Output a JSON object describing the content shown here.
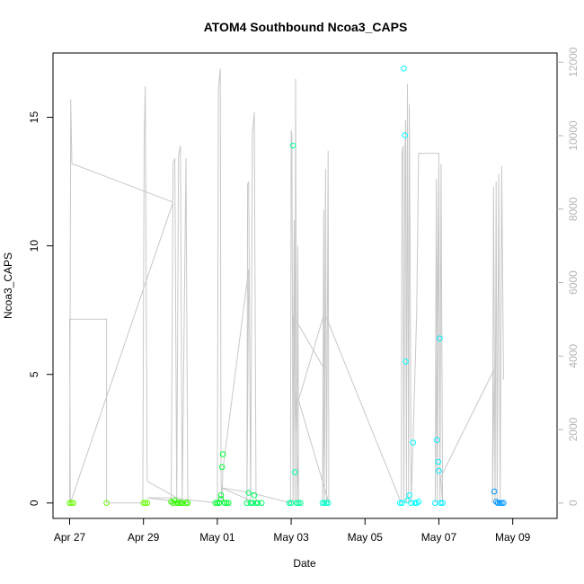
{
  "chart_data": {
    "type": "scatter",
    "title": "ATOM4 Southbound Ncoa3_CAPS",
    "xlabel": "Date",
    "ylabel": "Ncoa3_CAPS",
    "x_ticks": [
      "Apr 27",
      "Apr 29",
      "May 01",
      "May 03",
      "May 05",
      "May 07",
      "May 09"
    ],
    "x_tick_days": [
      0,
      2,
      4,
      6,
      8,
      10,
      12
    ],
    "xlim_days": [
      -0.45,
      13.2
    ],
    "y_ticks": [
      0,
      5,
      10,
      15
    ],
    "ylim": [
      -0.6,
      17.5
    ],
    "y2_ticks": [
      0,
      2000,
      4000,
      6000,
      8000,
      10000,
      12000
    ],
    "y2lim": [
      -420,
      12250
    ],
    "grid": false,
    "colors": {
      "line": "#c8c8c8",
      "axis": "#000000",
      "right_axis": "#b4b4b4"
    },
    "series": [
      {
        "color": "#66ff00",
        "points": [
          [
            0.0,
            0
          ],
          [
            0.05,
            0
          ],
          [
            0.1,
            0
          ],
          [
            1.0,
            0
          ],
          [
            2.0,
            0
          ],
          [
            2.05,
            0
          ],
          [
            2.1,
            0
          ]
        ]
      },
      {
        "color": "#33ff00",
        "points": [
          [
            2.75,
            0.05
          ],
          [
            2.8,
            0
          ],
          [
            2.85,
            0.1
          ],
          [
            2.9,
            0
          ],
          [
            2.95,
            0
          ],
          [
            3.0,
            0
          ],
          [
            3.05,
            0
          ],
          [
            3.15,
            0
          ],
          [
            3.2,
            0
          ]
        ]
      },
      {
        "color": "#00ff33",
        "points": [
          [
            3.95,
            0
          ],
          [
            4.0,
            0
          ],
          [
            4.05,
            0
          ],
          [
            4.1,
            0.3
          ],
          [
            4.1,
            0.15
          ],
          [
            4.15,
            1.9
          ],
          [
            4.13,
            1.4
          ],
          [
            4.2,
            0
          ],
          [
            4.25,
            0
          ],
          [
            4.3,
            0
          ]
        ]
      },
      {
        "color": "#00ff66",
        "points": [
          [
            4.8,
            0
          ],
          [
            4.85,
            0.4
          ],
          [
            4.9,
            0
          ],
          [
            4.95,
            0
          ],
          [
            5.0,
            0.3
          ],
          [
            5.05,
            0
          ],
          [
            5.1,
            0
          ],
          [
            5.2,
            0
          ]
        ]
      },
      {
        "color": "#00ff99",
        "points": [
          [
            5.95,
            0
          ],
          [
            6.0,
            0
          ],
          [
            6.05,
            13.9
          ],
          [
            6.1,
            1.2
          ],
          [
            6.15,
            0
          ],
          [
            6.2,
            0
          ],
          [
            6.25,
            0
          ]
        ]
      },
      {
        "color": "#00ffcc",
        "points": [
          [
            6.85,
            0
          ],
          [
            6.9,
            0
          ],
          [
            6.95,
            0
          ],
          [
            7.0,
            0
          ]
        ]
      },
      {
        "color": "#00ffff",
        "points": [
          [
            8.95,
            0
          ],
          [
            9.0,
            0
          ],
          [
            9.05,
            16.9
          ],
          [
            9.08,
            14.3
          ],
          [
            9.1,
            5.5
          ],
          [
            9.15,
            0.1
          ],
          [
            9.2,
            0.3
          ],
          [
            9.25,
            0
          ],
          [
            9.3,
            2.35
          ],
          [
            9.35,
            0
          ],
          [
            9.4,
            0
          ],
          [
            9.45,
            0.05
          ]
        ]
      },
      {
        "color": "#00eeff",
        "points": [
          [
            9.9,
            0
          ],
          [
            9.95,
            2.45
          ],
          [
            9.98,
            1.6
          ],
          [
            10.0,
            1.25
          ],
          [
            10.02,
            6.4
          ],
          [
            10.05,
            0
          ],
          [
            10.1,
            0
          ]
        ]
      },
      {
        "color": "#0099ff",
        "points": [
          [
            11.5,
            0.45
          ],
          [
            11.55,
            0.05
          ],
          [
            11.6,
            0
          ],
          [
            11.65,
            0
          ],
          [
            11.7,
            0
          ],
          [
            11.75,
            0
          ]
        ]
      }
    ],
    "line_path": [
      [
        0.0,
        0.0
      ],
      [
        0.03,
        15.7
      ],
      [
        0.06,
        13.2
      ],
      [
        2.8,
        11.7
      ],
      [
        0.02,
        0.0
      ],
      [
        0.0,
        7.15
      ],
      [
        1.0,
        7.15
      ],
      [
        1.0,
        0.0
      ],
      [
        1.98,
        0.0
      ],
      [
        2.02,
        14.3
      ],
      [
        2.05,
        16.2
      ],
      [
        2.1,
        0.85
      ],
      [
        3.15,
        0.0
      ],
      [
        2.75,
        0.0
      ],
      [
        2.8,
        13.2
      ],
      [
        2.85,
        13.4
      ],
      [
        2.9,
        0.0
      ],
      [
        2.95,
        13.5
      ],
      [
        3.0,
        13.9
      ],
      [
        3.05,
        0.0
      ],
      [
        3.15,
        13.4
      ],
      [
        3.2,
        0.0
      ],
      [
        2.1,
        0.2
      ],
      [
        2.75,
        0.2
      ],
      [
        4.0,
        0.0
      ],
      [
        4.03,
        16.1
      ],
      [
        4.08,
        16.9
      ],
      [
        4.1,
        0.9
      ],
      [
        4.12,
        0.0
      ],
      [
        4.15,
        1.3
      ],
      [
        4.85,
        9.1
      ],
      [
        4.8,
        0.0
      ],
      [
        4.82,
        12.4
      ],
      [
        4.85,
        12.5
      ],
      [
        4.9,
        0.0
      ],
      [
        4.95,
        14.3
      ],
      [
        5.0,
        15.2
      ],
      [
        5.05,
        0.0
      ],
      [
        4.1,
        0.6
      ],
      [
        4.9,
        0.4
      ],
      [
        5.98,
        0.0
      ],
      [
        6.0,
        14.5
      ],
      [
        6.02,
        14.3
      ],
      [
        6.05,
        0.0
      ],
      [
        6.08,
        11.0
      ],
      [
        6.1,
        0.0
      ],
      [
        6.12,
        16.5
      ],
      [
        6.15,
        0.0
      ],
      [
        6.18,
        10.0
      ],
      [
        6.2,
        0.0
      ],
      [
        6.05,
        7.3
      ],
      [
        6.9,
        5.2
      ],
      [
        6.85,
        0.0
      ],
      [
        6.88,
        11.4
      ],
      [
        6.9,
        0.0
      ],
      [
        6.93,
        13.0
      ],
      [
        6.96,
        0.0
      ],
      [
        7.0,
        13.7
      ],
      [
        7.02,
        0.0
      ],
      [
        6.2,
        4.0
      ],
      [
        6.9,
        7.4
      ],
      [
        8.98,
        0.0
      ],
      [
        9.0,
        13.6
      ],
      [
        9.03,
        13.9
      ],
      [
        9.05,
        0.0
      ],
      [
        9.08,
        13.5
      ],
      [
        9.1,
        14.9
      ],
      [
        9.12,
        0.0
      ],
      [
        9.15,
        16.3
      ],
      [
        9.18,
        0.0
      ],
      [
        9.2,
        15.5
      ],
      [
        9.25,
        0.0
      ],
      [
        9.4,
        7.4
      ],
      [
        9.45,
        13.6
      ],
      [
        10.0,
        13.6
      ],
      [
        9.9,
        0.0
      ],
      [
        9.93,
        12.6
      ],
      [
        9.96,
        0.0
      ],
      [
        10.0,
        13.0
      ],
      [
        10.03,
        0.0
      ],
      [
        10.06,
        13.2
      ],
      [
        10.1,
        0.0
      ],
      [
        10.05,
        1.0
      ],
      [
        11.5,
        5.2
      ],
      [
        11.45,
        0.0
      ],
      [
        11.48,
        12.3
      ],
      [
        11.52,
        0.0
      ],
      [
        11.55,
        12.5
      ],
      [
        11.58,
        0.0
      ],
      [
        11.62,
        12.8
      ],
      [
        11.66,
        0.0
      ],
      [
        11.7,
        13.1
      ],
      [
        11.75,
        4.8
      ]
    ]
  }
}
